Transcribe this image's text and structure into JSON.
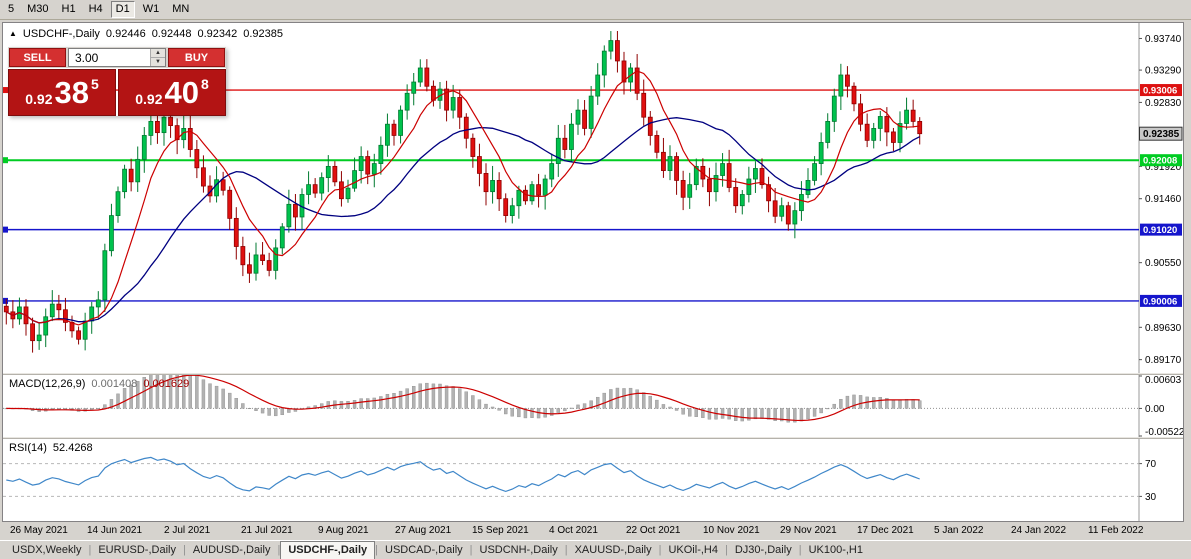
{
  "window": {
    "bg": "#d6d3ce"
  },
  "toolbar": {
    "timeframes": [
      {
        "label": "5",
        "active": false
      },
      {
        "label": "M30",
        "active": false
      },
      {
        "label": "H1",
        "active": false
      },
      {
        "label": "H4",
        "active": false
      },
      {
        "label": "D1",
        "active": true
      },
      {
        "label": "W1",
        "active": false
      },
      {
        "label": "MN",
        "active": false
      }
    ]
  },
  "quote": {
    "open": "0.92446",
    "high": "0.92448",
    "low": "0.92342",
    "close": "0.92385"
  },
  "trade": {
    "sell_label": "SELL",
    "buy_label": "BUY",
    "volume": "3.00",
    "bid": {
      "prefix": "0.92",
      "big": "38",
      "sup": "5"
    },
    "ask": {
      "prefix": "0.92",
      "big": "40",
      "sup": "8"
    }
  },
  "chart_data": [
    {
      "type": "candlestick",
      "title": "USDCHF-,Daily",
      "x_labels": [
        "26 May 2021",
        "14 Jun 2021",
        "2 Jul 2021",
        "21 Jul 2021",
        "9 Aug 2021",
        "27 Aug 2021",
        "15 Sep 2021",
        "4 Oct 2021",
        "22 Oct 2021",
        "10 Nov 2021",
        "29 Nov 2021",
        "17 Dec 2021",
        "5 Jan 2022",
        "24 Jan 2022",
        "11 Feb 2022"
      ],
      "closes": [
        0.8985,
        0.8975,
        0.8992,
        0.8968,
        0.8944,
        0.8952,
        0.8978,
        0.8996,
        0.8988,
        0.897,
        0.8958,
        0.8946,
        0.8972,
        0.8992,
        0.9002,
        0.9072,
        0.9122,
        0.9156,
        0.9188,
        0.917,
        0.9202,
        0.9236,
        0.9256,
        0.924,
        0.9262,
        0.925,
        0.923,
        0.9246,
        0.9216,
        0.919,
        0.9164,
        0.915,
        0.9173,
        0.9158,
        0.9118,
        0.9078,
        0.9052,
        0.904,
        0.9066,
        0.9058,
        0.9044,
        0.9076,
        0.9106,
        0.9138,
        0.912,
        0.9152,
        0.9166,
        0.9154,
        0.9176,
        0.9192,
        0.917,
        0.9146,
        0.9161,
        0.9186,
        0.9206,
        0.9181,
        0.9196,
        0.9222,
        0.9252,
        0.9236,
        0.9272,
        0.9296,
        0.9312,
        0.9332,
        0.9306,
        0.9286,
        0.9302,
        0.9272,
        0.929,
        0.9262,
        0.9232,
        0.9206,
        0.9182,
        0.9156,
        0.9172,
        0.9146,
        0.9122,
        0.9136,
        0.9158,
        0.9143,
        0.9166,
        0.9151,
        0.9174,
        0.9196,
        0.9232,
        0.9216,
        0.9252,
        0.9272,
        0.9246,
        0.9292,
        0.9322,
        0.9356,
        0.9371,
        0.9342,
        0.9312,
        0.9332,
        0.9296,
        0.9262,
        0.9236,
        0.9212,
        0.9186,
        0.9206,
        0.9172,
        0.9148,
        0.9166,
        0.9192,
        0.9174,
        0.9156,
        0.9179,
        0.9196,
        0.9162,
        0.9136,
        0.9152,
        0.9174,
        0.9189,
        0.9166,
        0.9143,
        0.9121,
        0.9136,
        0.911,
        0.9129,
        0.9152,
        0.9172,
        0.9196,
        0.9226,
        0.9256,
        0.9292,
        0.9322,
        0.9306,
        0.9281,
        0.9252,
        0.9229,
        0.9246,
        0.9263,
        0.9241,
        0.9226,
        0.9253,
        0.9272,
        0.9256,
        0.92385
      ],
      "ylim": [
        0.8898,
        0.9396
      ],
      "y_ticks": [
        "0.93740",
        "0.93290",
        "0.92830",
        "0.91920",
        "0.91460",
        "0.90550",
        "0.89630",
        "0.89170"
      ],
      "hlines": [
        {
          "value": 0.93006,
          "label": "0.93006",
          "color": "#dd1111",
          "width": 1.4
        },
        {
          "value": 0.92008,
          "label": "0.92008",
          "color": "#00cc22",
          "width": 2
        },
        {
          "value": 0.9102,
          "label": "0.91020",
          "color": "#1515cc",
          "width": 1.4
        },
        {
          "value": 0.90006,
          "label": "0.90006",
          "color": "#1515cc",
          "width": 1.4
        }
      ],
      "current_price": {
        "value": 0.92385,
        "label": "0.92385"
      },
      "colors": {
        "up": "#00c24d",
        "up_border": "#007a30",
        "down": "#e01010",
        "down_border": "#8f0000",
        "ma_fast": "#cc0000",
        "ma_slow": "#000080"
      }
    },
    {
      "type": "macd",
      "label": "MACD(12,26,9)",
      "value_main": "0.001408",
      "value_signal": "0.001629",
      "params": [
        12,
        26,
        9
      ],
      "ylim": [
        -0.0053,
        0.0062
      ],
      "y_ticks": [
        {
          "label": "0.00603",
          "value": 0.00603
        },
        {
          "label": "0.00",
          "value": 0
        },
        {
          "label": "-0.00522",
          "value": -0.00522
        }
      ],
      "colors": {
        "hist": "#b2b2b2",
        "hist_border": "#8e8e8e",
        "signal": "#cc0000"
      }
    },
    {
      "type": "rsi",
      "label": "RSI(14)",
      "value": "52.4268",
      "period": 14,
      "ylim": [
        0,
        100
      ],
      "levels": [
        {
          "label": "70",
          "value": 70
        },
        {
          "label": "30",
          "value": 30
        }
      ],
      "color": "#3f87c9"
    }
  ],
  "tabbar": {
    "separator": "|",
    "tabs": [
      {
        "label": "USDX,Weekly",
        "active": false
      },
      {
        "label": "EURUSD-,Daily",
        "active": false
      },
      {
        "label": "AUDUSD-,Daily",
        "active": false
      },
      {
        "label": "USDCHF-,Daily",
        "active": true
      },
      {
        "label": "USDCAD-,Daily",
        "active": false
      },
      {
        "label": "USDCNH-,Daily",
        "active": false
      },
      {
        "label": "XAUUSD-,Daily",
        "active": false
      },
      {
        "label": "UKOil-,H4",
        "active": false
      },
      {
        "label": "DJ30-,Daily",
        "active": false
      },
      {
        "label": "UK100-,H1",
        "active": false
      }
    ]
  }
}
